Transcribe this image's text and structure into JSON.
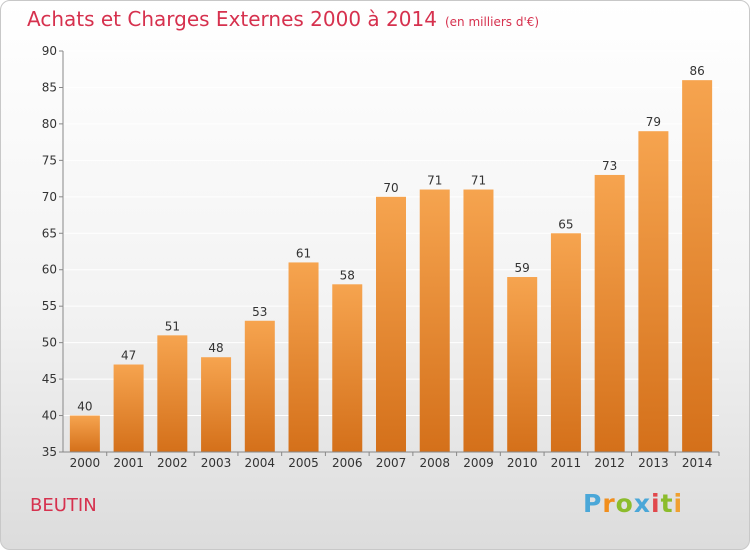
{
  "header": {
    "title": "Achats et Charges Externes 2000 à 2014",
    "unit": "(en milliers d'€)"
  },
  "commune": "BEUTIN",
  "logo": [
    "P",
    "r",
    "o",
    "x",
    "i",
    "t",
    "i"
  ],
  "colors": {
    "title": "#d6314e",
    "bar_top": "#f6a44f",
    "bar_bottom": "#d4701a",
    "gridline": "#ffffff",
    "axis_text": "#333333"
  },
  "chart_data": {
    "type": "bar",
    "title": "Achats et Charges Externes 2000 à 2014",
    "subtitle": "(en milliers d'€)",
    "categories": [
      "2000",
      "2001",
      "2002",
      "2003",
      "2004",
      "2005",
      "2006",
      "2007",
      "2008",
      "2009",
      "2010",
      "2011",
      "2012",
      "2013",
      "2014"
    ],
    "values": [
      40,
      47,
      51,
      48,
      53,
      61,
      58,
      70,
      71,
      71,
      59,
      65,
      73,
      79,
      86
    ],
    "ylim": [
      35,
      90
    ],
    "yticks": [
      35,
      40,
      45,
      50,
      55,
      60,
      65,
      70,
      75,
      80,
      85,
      90
    ],
    "grid": true,
    "data_labels": true,
    "legend": "none"
  }
}
